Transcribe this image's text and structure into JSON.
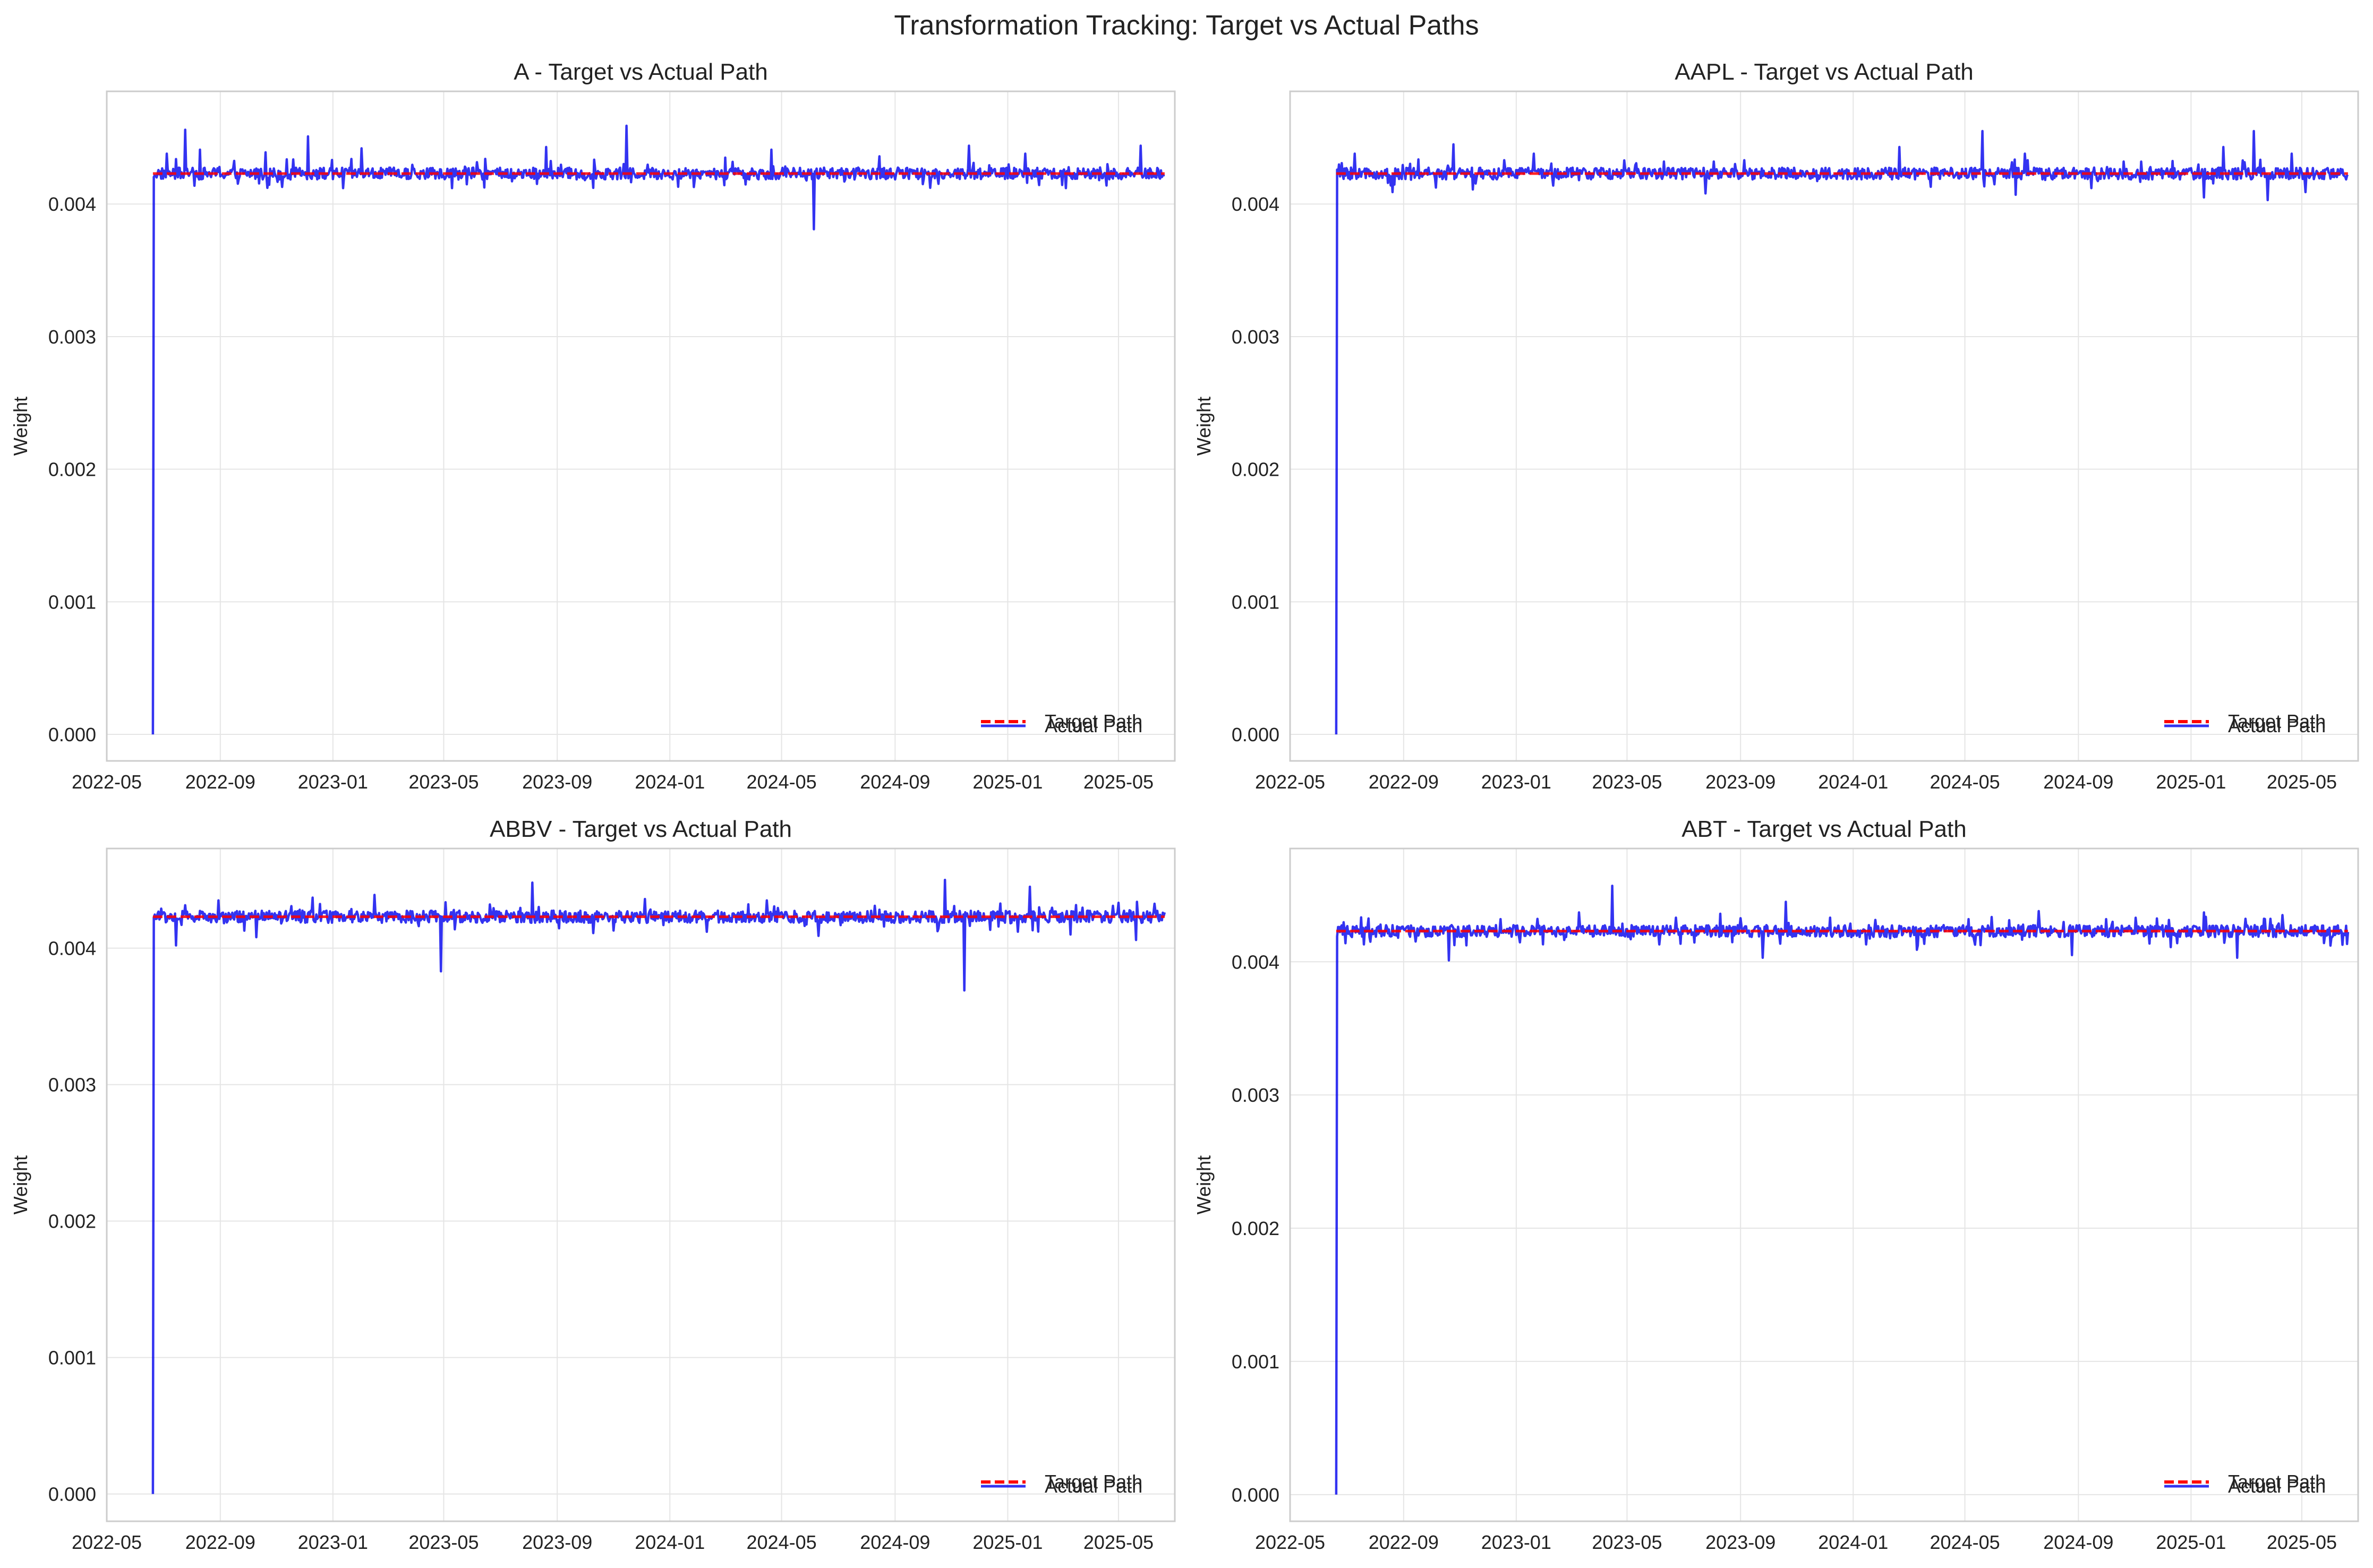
{
  "figure": {
    "suptitle": "Transformation Tracking: Target vs Actual Paths",
    "colors": {
      "target": "#ff0000",
      "actual": "#0000ee",
      "grid": "#e5e5e5",
      "spine": "#cccccc",
      "text": "#222222"
    }
  },
  "chart_data": [
    {
      "type": "line",
      "title": "A - Target vs Actual Path",
      "xlabel": "",
      "ylabel": "Weight",
      "x_range": [
        "2022-05-01",
        "2025-07-01"
      ],
      "ylim": [
        -0.0002,
        0.00485
      ],
      "x_ticks": [
        "2022-05",
        "2022-09",
        "2023-01",
        "2023-05",
        "2023-09",
        "2024-01",
        "2024-05",
        "2024-09",
        "2025-01",
        "2025-05"
      ],
      "y_ticks": [
        "0.000",
        "0.001",
        "0.002",
        "0.003",
        "0.004"
      ],
      "grid": true,
      "legend": {
        "placement": "lower-right",
        "entries": [
          "Target Path",
          "Actual Path"
        ]
      },
      "target_value": 0.00423,
      "start_date": "2022-06-20",
      "end_date": "2025-06-20",
      "series": [
        {
          "name": "Target Path",
          "style": "dashed",
          "color": "#ff0000",
          "points": [
            [
              "2022-06-20",
              0.00423
            ],
            [
              "2025-06-20",
              0.00423
            ]
          ]
        },
        {
          "name": "Actual Path",
          "style": "solid",
          "color": "#0000ee",
          "points": [
            [
              "2022-06-20",
              0.0
            ],
            [
              "2022-06-21",
              0.00423
            ],
            [
              "2025-06-20",
              0.00423
            ]
          ],
          "spikes": [
            [
              "2022-07-05",
              0.00438
            ],
            [
              "2022-07-25",
              0.00456
            ],
            [
              "2022-08-10",
              0.00441
            ],
            [
              "2022-10-20",
              0.00439
            ],
            [
              "2022-12-05",
              0.00451
            ],
            [
              "2023-01-12",
              0.00412
            ],
            [
              "2023-02-01",
              0.00442
            ],
            [
              "2023-04-05",
              0.00419
            ],
            [
              "2023-05-10",
              0.00412
            ],
            [
              "2023-06-15",
              0.00434
            ],
            [
              "2023-08-20",
              0.00443
            ],
            [
              "2023-10-01",
              0.00418
            ],
            [
              "2023-11-15",
              0.00459
            ],
            [
              "2024-01-10",
              0.00413
            ],
            [
              "2024-03-01",
              0.00435
            ],
            [
              "2024-04-20",
              0.00441
            ],
            [
              "2024-06-05",
              0.00381
            ],
            [
              "2024-08-15",
              0.00436
            ],
            [
              "2024-10-01",
              0.00415
            ],
            [
              "2024-11-20",
              0.00444
            ],
            [
              "2025-01-20",
              0.00438
            ],
            [
              "2025-03-05",
              0.00412
            ],
            [
              "2025-04-10",
              0.00418
            ],
            [
              "2025-05-25",
              0.00444
            ]
          ]
        }
      ]
    },
    {
      "type": "line",
      "title": "AAPL - Target vs Actual Path",
      "xlabel": "",
      "ylabel": "Weight",
      "x_range": [
        "2022-05-01",
        "2025-07-01"
      ],
      "ylim": [
        -0.0002,
        0.00485
      ],
      "x_ticks": [
        "2022-05",
        "2022-09",
        "2023-01",
        "2023-05",
        "2023-09",
        "2024-01",
        "2024-05",
        "2024-09",
        "2025-01",
        "2025-05"
      ],
      "y_ticks": [
        "0.000",
        "0.001",
        "0.002",
        "0.003",
        "0.004"
      ],
      "grid": true,
      "legend": {
        "placement": "lower-right",
        "entries": [
          "Target Path",
          "Actual Path"
        ]
      },
      "target_value": 0.00423,
      "start_date": "2022-06-20",
      "end_date": "2025-06-20",
      "series": [
        {
          "name": "Target Path",
          "style": "dashed",
          "color": "#ff0000",
          "points": [
            [
              "2022-06-20",
              0.00423
            ],
            [
              "2025-06-20",
              0.00423
            ]
          ]
        },
        {
          "name": "Actual Path",
          "style": "solid",
          "color": "#0000ee",
          "points": [
            [
              "2022-06-20",
              0.0
            ],
            [
              "2022-06-21",
              0.00423
            ],
            [
              "2025-06-20",
              0.00423
            ]
          ],
          "spikes": [
            [
              "2022-07-10",
              0.00438
            ],
            [
              "2022-08-20",
              0.00409
            ],
            [
              "2022-10-25",
              0.00445
            ],
            [
              "2022-11-15",
              0.00411
            ],
            [
              "2023-01-20",
              0.00438
            ],
            [
              "2023-03-10",
              0.00418
            ],
            [
              "2023-06-10",
              0.00432
            ],
            [
              "2023-07-25",
              0.00408
            ],
            [
              "2023-09-05",
              0.00433
            ],
            [
              "2023-11-20",
              0.00421
            ],
            [
              "2024-02-20",
              0.00443
            ],
            [
              "2024-03-25",
              0.00413
            ],
            [
              "2024-05-20",
              0.00455
            ],
            [
              "2024-06-25",
              0.00407
            ],
            [
              "2024-07-05",
              0.00438
            ],
            [
              "2024-09-15",
              0.00412
            ],
            [
              "2024-10-20",
              0.00432
            ],
            [
              "2025-01-15",
              0.00405
            ],
            [
              "2025-02-05",
              0.00443
            ],
            [
              "2025-03-10",
              0.00455
            ],
            [
              "2025-03-25",
              0.00403
            ],
            [
              "2025-04-20",
              0.00438
            ],
            [
              "2025-05-05",
              0.00409
            ]
          ]
        }
      ]
    },
    {
      "type": "line",
      "title": "ABBV - Target vs Actual Path",
      "xlabel": "",
      "ylabel": "Weight",
      "x_range": [
        "2022-05-01",
        "2025-07-01"
      ],
      "ylim": [
        -0.0002,
        0.00473
      ],
      "x_ticks": [
        "2022-05",
        "2022-09",
        "2023-01",
        "2023-05",
        "2023-09",
        "2024-01",
        "2024-05",
        "2024-09",
        "2025-01",
        "2025-05"
      ],
      "y_ticks": [
        "0.000",
        "0.001",
        "0.002",
        "0.003",
        "0.004"
      ],
      "grid": true,
      "legend": {
        "placement": "lower-right",
        "entries": [
          "Target Path",
          "Actual Path"
        ]
      },
      "target_value": 0.00423,
      "start_date": "2022-06-20",
      "end_date": "2025-06-20",
      "series": [
        {
          "name": "Target Path",
          "style": "dashed",
          "color": "#ff0000",
          "points": [
            [
              "2022-06-20",
              0.00423
            ],
            [
              "2025-06-20",
              0.00423
            ]
          ]
        },
        {
          "name": "Actual Path",
          "style": "solid",
          "color": "#0000ee",
          "points": [
            [
              "2022-06-20",
              0.0
            ],
            [
              "2022-06-21",
              0.00423
            ],
            [
              "2025-06-20",
              0.00423
            ]
          ],
          "spikes": [
            [
              "2022-07-15",
              0.00402
            ],
            [
              "2022-08-30",
              0.00435
            ],
            [
              "2022-10-10",
              0.00408
            ],
            [
              "2022-12-10",
              0.00437
            ],
            [
              "2023-02-15",
              0.00439
            ],
            [
              "2023-04-28",
              0.00383
            ],
            [
              "2023-06-20",
              0.00432
            ],
            [
              "2023-08-05",
              0.00448
            ],
            [
              "2023-10-10",
              0.00411
            ],
            [
              "2023-12-05",
              0.00436
            ],
            [
              "2024-02-10",
              0.00412
            ],
            [
              "2024-04-15",
              0.00435
            ],
            [
              "2024-06-10",
              0.00409
            ],
            [
              "2024-08-10",
              0.00431
            ],
            [
              "2024-10-25",
              0.0045
            ],
            [
              "2024-11-15",
              0.00369
            ],
            [
              "2025-01-25",
              0.00445
            ],
            [
              "2025-03-10",
              0.0041
            ],
            [
              "2025-04-25",
              0.00431
            ],
            [
              "2025-05-20",
              0.00406
            ]
          ]
        }
      ]
    },
    {
      "type": "line",
      "title": "ABT - Target vs Actual Path",
      "xlabel": "",
      "ylabel": "Weight",
      "x_range": [
        "2022-05-01",
        "2025-07-01"
      ],
      "ylim": [
        -0.0002,
        0.00485
      ],
      "x_ticks": [
        "2022-05",
        "2022-09",
        "2023-01",
        "2023-05",
        "2023-09",
        "2024-01",
        "2024-05",
        "2024-09",
        "2025-01",
        "2025-05"
      ],
      "y_ticks": [
        "0.000",
        "0.001",
        "0.002",
        "0.003",
        "0.004"
      ],
      "grid": true,
      "legend": {
        "placement": "lower-right",
        "entries": [
          "Target Path",
          "Actual Path"
        ]
      },
      "target_value": 0.00423,
      "start_date": "2022-06-20",
      "end_date": "2025-06-20",
      "series": [
        {
          "name": "Target Path",
          "style": "dashed",
          "color": "#ff0000",
          "points": [
            [
              "2022-06-20",
              0.00423
            ],
            [
              "2025-06-20",
              0.00423
            ]
          ]
        },
        {
          "name": "Actual Path",
          "style": "solid",
          "color": "#0000ee",
          "points": [
            [
              "2022-06-20",
              0.0
            ],
            [
              "2022-06-21",
              0.00423
            ],
            [
              "2025-06-20",
              0.00423
            ]
          ],
          "spikes": [
            [
              "2022-07-20",
              0.00413
            ],
            [
              "2022-10-20",
              0.00401
            ],
            [
              "2022-12-15",
              0.00432
            ],
            [
              "2023-03-10",
              0.00437
            ],
            [
              "2023-04-15",
              0.00457
            ],
            [
              "2023-06-05",
              0.00413
            ],
            [
              "2023-08-10",
              0.00436
            ],
            [
              "2023-09-25",
              0.00403
            ],
            [
              "2023-10-20",
              0.00445
            ],
            [
              "2024-01-15",
              0.00413
            ],
            [
              "2024-03-10",
              0.00409
            ],
            [
              "2024-05-05",
              0.00432
            ],
            [
              "2024-07-20",
              0.00438
            ],
            [
              "2024-08-25",
              0.00405
            ],
            [
              "2024-10-01",
              0.00432
            ],
            [
              "2024-12-10",
              0.00411
            ],
            [
              "2025-01-15",
              0.00437
            ],
            [
              "2025-02-20",
              0.00403
            ],
            [
              "2025-04-10",
              0.00435
            ],
            [
              "2025-05-25",
              0.00414
            ]
          ]
        }
      ]
    }
  ]
}
